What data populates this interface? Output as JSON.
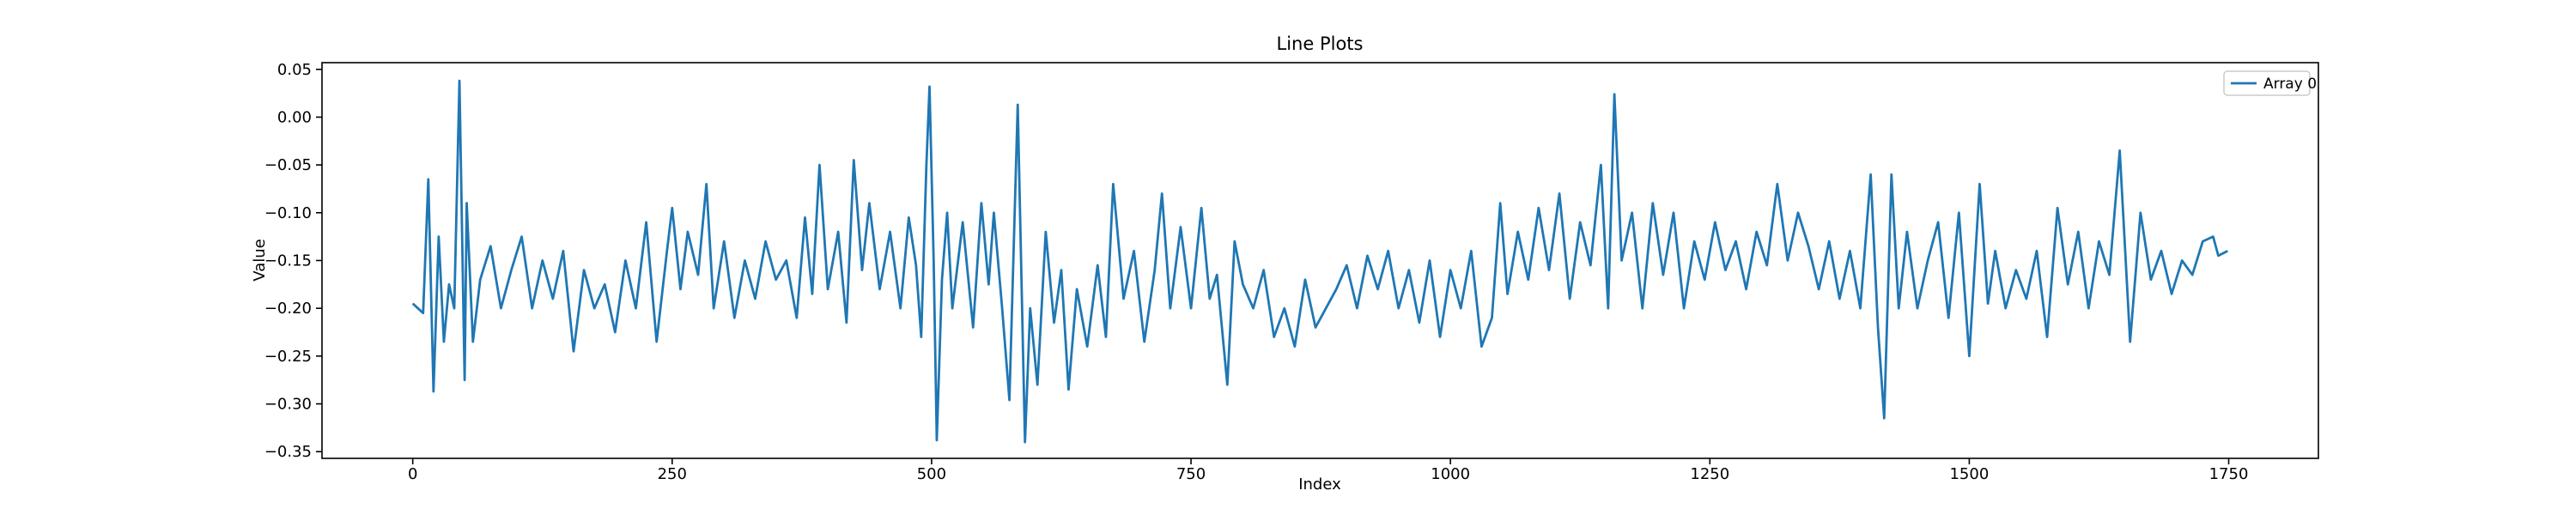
{
  "chart_data": {
    "type": "line",
    "title": "Line Plots",
    "x_label": "Index",
    "y_label": "Value",
    "legend": "upper right",
    "grid": false,
    "xlim": [
      -87.45,
      1836.45
    ],
    "ylim": [
      -0.357,
      0.057
    ],
    "xticks": [
      0,
      250,
      500,
      750,
      1000,
      1250,
      1500,
      1750
    ],
    "yticks": [
      {
        "value": 0.05,
        "label": "0.05"
      },
      {
        "value": 0,
        "label": "0.00"
      },
      {
        "value": -0.05,
        "label": "−0.05"
      },
      {
        "value": -0.1,
        "label": "−0.10"
      },
      {
        "value": -0.15,
        "label": "−0.15"
      },
      {
        "value": -0.2,
        "label": "−0.20"
      },
      {
        "value": -0.25,
        "label": "−0.25"
      },
      {
        "value": -0.3,
        "label": "−0.30"
      },
      {
        "value": -0.35,
        "label": "−0.35"
      }
    ],
    "x": [
      0,
      5,
      10,
      15,
      20,
      25,
      30,
      35,
      40,
      45,
      50,
      52,
      58,
      65,
      75,
      85,
      95,
      105,
      115,
      125,
      135,
      145,
      155,
      165,
      175,
      185,
      195,
      205,
      215,
      225,
      235,
      245,
      250,
      258,
      265,
      275,
      283,
      290,
      300,
      310,
      320,
      330,
      340,
      350,
      360,
      370,
      378,
      385,
      392,
      400,
      410,
      418,
      425,
      433,
      440,
      450,
      460,
      470,
      478,
      485,
      490,
      495,
      498,
      502,
      505,
      510,
      515,
      520,
      530,
      540,
      548,
      555,
      560,
      568,
      575,
      583,
      590,
      595,
      602,
      610,
      618,
      625,
      632,
      640,
      650,
      660,
      668,
      675,
      685,
      695,
      705,
      715,
      722,
      730,
      740,
      750,
      760,
      768,
      775,
      785,
      792,
      800,
      810,
      820,
      830,
      840,
      850,
      860,
      870,
      880,
      890,
      900,
      910,
      920,
      930,
      940,
      950,
      960,
      970,
      980,
      990,
      1000,
      1010,
      1020,
      1030,
      1040,
      1048,
      1055,
      1065,
      1075,
      1085,
      1095,
      1105,
      1115,
      1125,
      1135,
      1145,
      1152,
      1158,
      1165,
      1175,
      1185,
      1195,
      1205,
      1215,
      1225,
      1235,
      1245,
      1255,
      1265,
      1275,
      1285,
      1295,
      1305,
      1315,
      1325,
      1335,
      1345,
      1355,
      1365,
      1375,
      1385,
      1395,
      1405,
      1412,
      1418,
      1425,
      1432,
      1440,
      1450,
      1460,
      1470,
      1480,
      1490,
      1500,
      1510,
      1518,
      1525,
      1535,
      1545,
      1555,
      1565,
      1575,
      1585,
      1595,
      1605,
      1615,
      1625,
      1635,
      1645,
      1655,
      1665,
      1675,
      1685,
      1695,
      1705,
      1715,
      1725,
      1735,
      1740,
      1749
    ],
    "series": [
      {
        "name": "Array 0",
        "color": "#1f77b4",
        "values": [
          -0.195,
          -0.2,
          -0.205,
          -0.065,
          -0.287,
          -0.125,
          -0.235,
          -0.175,
          -0.2,
          0.038,
          -0.275,
          -0.09,
          -0.235,
          -0.17,
          -0.135,
          -0.2,
          -0.16,
          -0.125,
          -0.2,
          -0.15,
          -0.19,
          -0.14,
          -0.245,
          -0.16,
          -0.2,
          -0.175,
          -0.225,
          -0.15,
          -0.2,
          -0.11,
          -0.235,
          -0.14,
          -0.095,
          -0.18,
          -0.12,
          -0.165,
          -0.07,
          -0.2,
          -0.13,
          -0.21,
          -0.15,
          -0.19,
          -0.13,
          -0.17,
          -0.15,
          -0.21,
          -0.105,
          -0.185,
          -0.05,
          -0.18,
          -0.12,
          -0.215,
          -0.045,
          -0.16,
          -0.09,
          -0.18,
          -0.12,
          -0.2,
          -0.105,
          -0.155,
          -0.23,
          -0.05,
          0.032,
          -0.15,
          -0.338,
          -0.17,
          -0.1,
          -0.2,
          -0.11,
          -0.22,
          -0.09,
          -0.175,
          -0.1,
          -0.2,
          -0.296,
          0.013,
          -0.34,
          -0.2,
          -0.28,
          -0.12,
          -0.215,
          -0.16,
          -0.285,
          -0.18,
          -0.24,
          -0.155,
          -0.23,
          -0.07,
          -0.19,
          -0.14,
          -0.235,
          -0.16,
          -0.08,
          -0.2,
          -0.115,
          -0.2,
          -0.095,
          -0.19,
          -0.165,
          -0.28,
          -0.13,
          -0.175,
          -0.2,
          -0.16,
          -0.23,
          -0.2,
          -0.24,
          -0.17,
          -0.22,
          -0.2,
          -0.18,
          -0.155,
          -0.2,
          -0.145,
          -0.18,
          -0.14,
          -0.2,
          -0.16,
          -0.215,
          -0.15,
          -0.23,
          -0.16,
          -0.2,
          -0.14,
          -0.24,
          -0.21,
          -0.09,
          -0.185,
          -0.12,
          -0.17,
          -0.095,
          -0.16,
          -0.08,
          -0.19,
          -0.11,
          -0.155,
          -0.05,
          -0.2,
          0.024,
          -0.15,
          -0.1,
          -0.2,
          -0.09,
          -0.165,
          -0.1,
          -0.2,
          -0.13,
          -0.17,
          -0.11,
          -0.16,
          -0.13,
          -0.18,
          -0.12,
          -0.155,
          -0.07,
          -0.15,
          -0.1,
          -0.135,
          -0.18,
          -0.13,
          -0.19,
          -0.14,
          -0.2,
          -0.06,
          -0.22,
          -0.315,
          -0.06,
          -0.2,
          -0.12,
          -0.2,
          -0.15,
          -0.11,
          -0.21,
          -0.1,
          -0.25,
          -0.07,
          -0.195,
          -0.14,
          -0.2,
          -0.16,
          -0.19,
          -0.14,
          -0.23,
          -0.095,
          -0.175,
          -0.12,
          -0.2,
          -0.13,
          -0.165,
          -0.035,
          -0.235,
          -0.1,
          -0.17,
          -0.14,
          -0.185,
          -0.15,
          -0.165,
          -0.13,
          -0.125,
          -0.145,
          -0.14
        ]
      }
    ]
  }
}
